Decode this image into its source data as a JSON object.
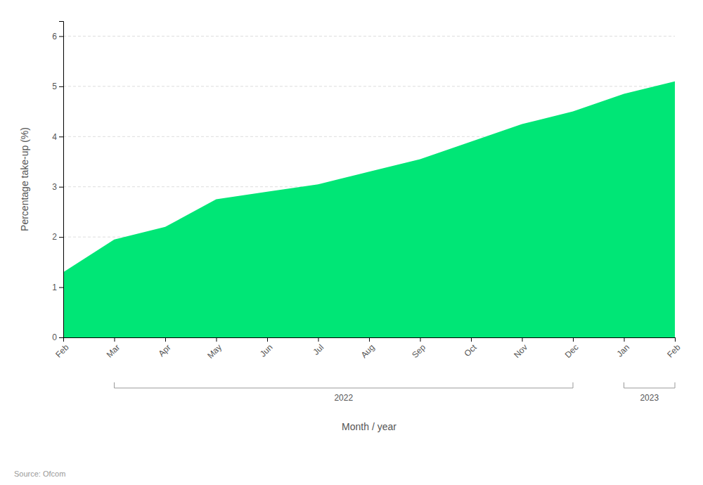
{
  "chart_data": {
    "type": "area",
    "categories": [
      "Feb",
      "Mar",
      "Apr",
      "May",
      "Jun",
      "Jul",
      "Aug",
      "Sep",
      "Oct",
      "Nov",
      "Dec",
      "Jan",
      "Feb"
    ],
    "values": [
      1.3,
      1.95,
      2.2,
      2.75,
      2.9,
      3.05,
      3.3,
      3.55,
      3.9,
      4.25,
      4.5,
      4.85,
      5.1
    ],
    "color": "#00E676",
    "xlabel": "Month / year",
    "ylabel": "Percentage take-up (%)",
    "ylim": [
      0,
      6.3
    ],
    "yticks": [
      0,
      1,
      2,
      3,
      4,
      5,
      6
    ],
    "grid": true,
    "annotations": [
      {
        "text": "2022",
        "from": 1,
        "to": 10
      },
      {
        "text": "2023",
        "from": 11,
        "to": 12
      }
    ],
    "source": "Source: Ofcom"
  }
}
